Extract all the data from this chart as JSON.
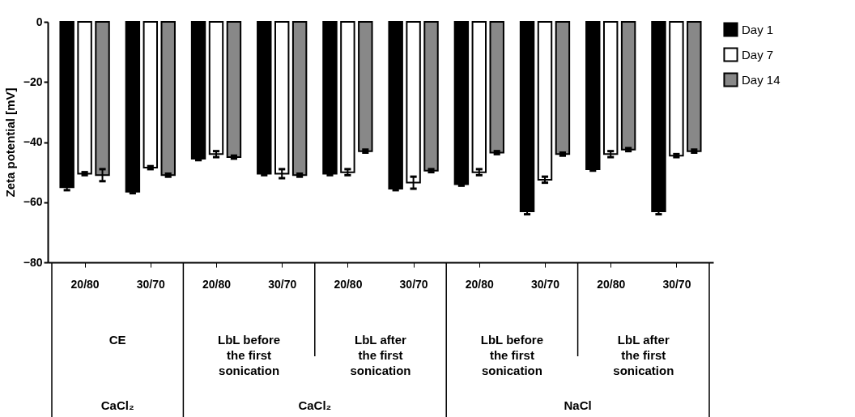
{
  "chart_data": {
    "type": "bar",
    "ylabel": "Zeta potential [mV]",
    "categories": [
      "20/80",
      "30/70",
      "20/80",
      "30/70",
      "20/80",
      "30/70",
      "20/80",
      "30/70",
      "20/80",
      "30/70"
    ],
    "series": [
      {
        "name": "Day 1",
        "color": "#000000",
        "values": [
          -55,
          -56.5,
          -45.5,
          -50.5,
          -50.5,
          -55.5,
          -54,
          -63,
          -49,
          -63
        ],
        "errors": [
          1,
          0.5,
          0.5,
          0.5,
          0.5,
          0.5,
          0.5,
          1,
          0.5,
          1
        ]
      },
      {
        "name": "Day 7",
        "color": "#ffffff",
        "values": [
          -50.5,
          -48.5,
          -44,
          -50.5,
          -50,
          -53.5,
          -50,
          -52.5,
          -44,
          -44.5
        ],
        "errors": [
          0.5,
          0.5,
          1,
          1.5,
          1,
          2,
          1,
          1,
          1,
          0.5
        ]
      },
      {
        "name": "Day 14",
        "color": "#888888",
        "values": [
          -51,
          -51,
          -45,
          -51,
          -43,
          -49.5,
          -43.5,
          -44,
          -42.5,
          -43
        ],
        "errors": [
          2,
          0.5,
          0.5,
          0.5,
          0.5,
          0.5,
          0.5,
          0.5,
          0.5,
          0.5
        ]
      }
    ],
    "ylim": [
      -80,
      0
    ],
    "yticks": [
      -80,
      -60,
      -40,
      -20,
      0
    ],
    "legend": "top right",
    "annotations": [
      "CE",
      "LbL before\nthe first\nsonication",
      "LbL after\nthe first\nsonication",
      "LbL before\nthe first\nsonication",
      "LbL after\nthe first\nsonication",
      "CaCl₂",
      "CaCl₂",
      "NaCl"
    ]
  }
}
